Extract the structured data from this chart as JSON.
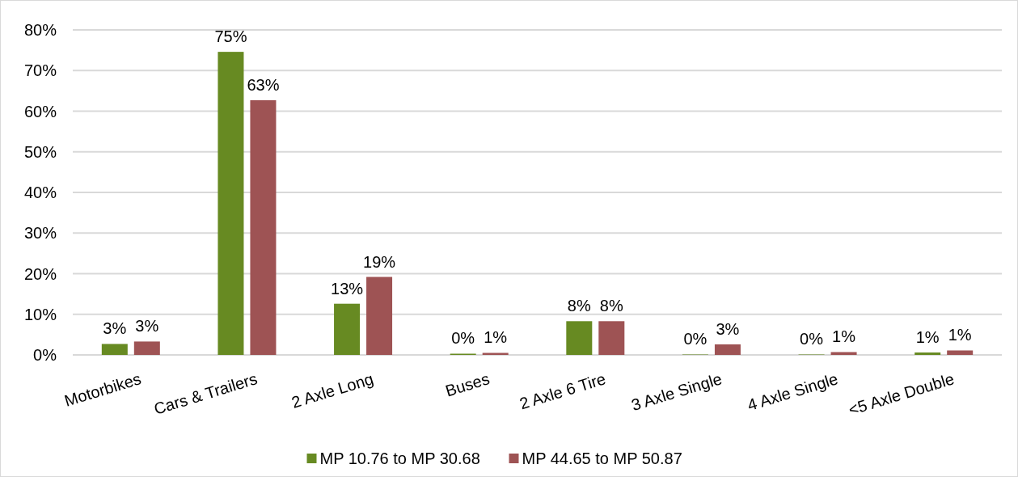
{
  "chart_data": {
    "type": "bar",
    "categories": [
      "Motorbikes",
      "Cars & Trailers",
      "2 Axle Long",
      "Buses",
      "2 Axle 6 Tire",
      "3 Axle Single",
      "4 Axle Single",
      "<5 Axle Double"
    ],
    "series": [
      {
        "name": "MP 10.76 to MP 30.68",
        "color": "#678a22",
        "values": [
          2.7,
          74.6,
          12.6,
          0.3,
          8.3,
          0.1,
          0.1,
          0.6
        ],
        "value_labels": [
          "3%",
          "75%",
          "13%",
          "0%",
          "8%",
          "0%",
          "0%",
          "1%"
        ]
      },
      {
        "name": "MP 44.65 to MP 50.87",
        "color": "#9e5354",
        "values": [
          3.3,
          62.7,
          19.2,
          0.5,
          8.3,
          2.6,
          0.7,
          1.1
        ],
        "value_labels": [
          "3%",
          "63%",
          "19%",
          "1%",
          "8%",
          "3%",
          "1%",
          "1%"
        ]
      }
    ],
    "ylim": [
      0,
      80
    ],
    "yticks": [
      {
        "value": 0,
        "label": "0%"
      },
      {
        "value": 10,
        "label": "10%"
      },
      {
        "value": 20,
        "label": "20%"
      },
      {
        "value": 30,
        "label": "30%"
      },
      {
        "value": 40,
        "label": "40%"
      },
      {
        "value": 50,
        "label": "50%"
      },
      {
        "value": 60,
        "label": "60%"
      },
      {
        "value": 70,
        "label": "70%"
      },
      {
        "value": 80,
        "label": "80%"
      }
    ],
    "grid": "y",
    "legend": "bottom"
  }
}
